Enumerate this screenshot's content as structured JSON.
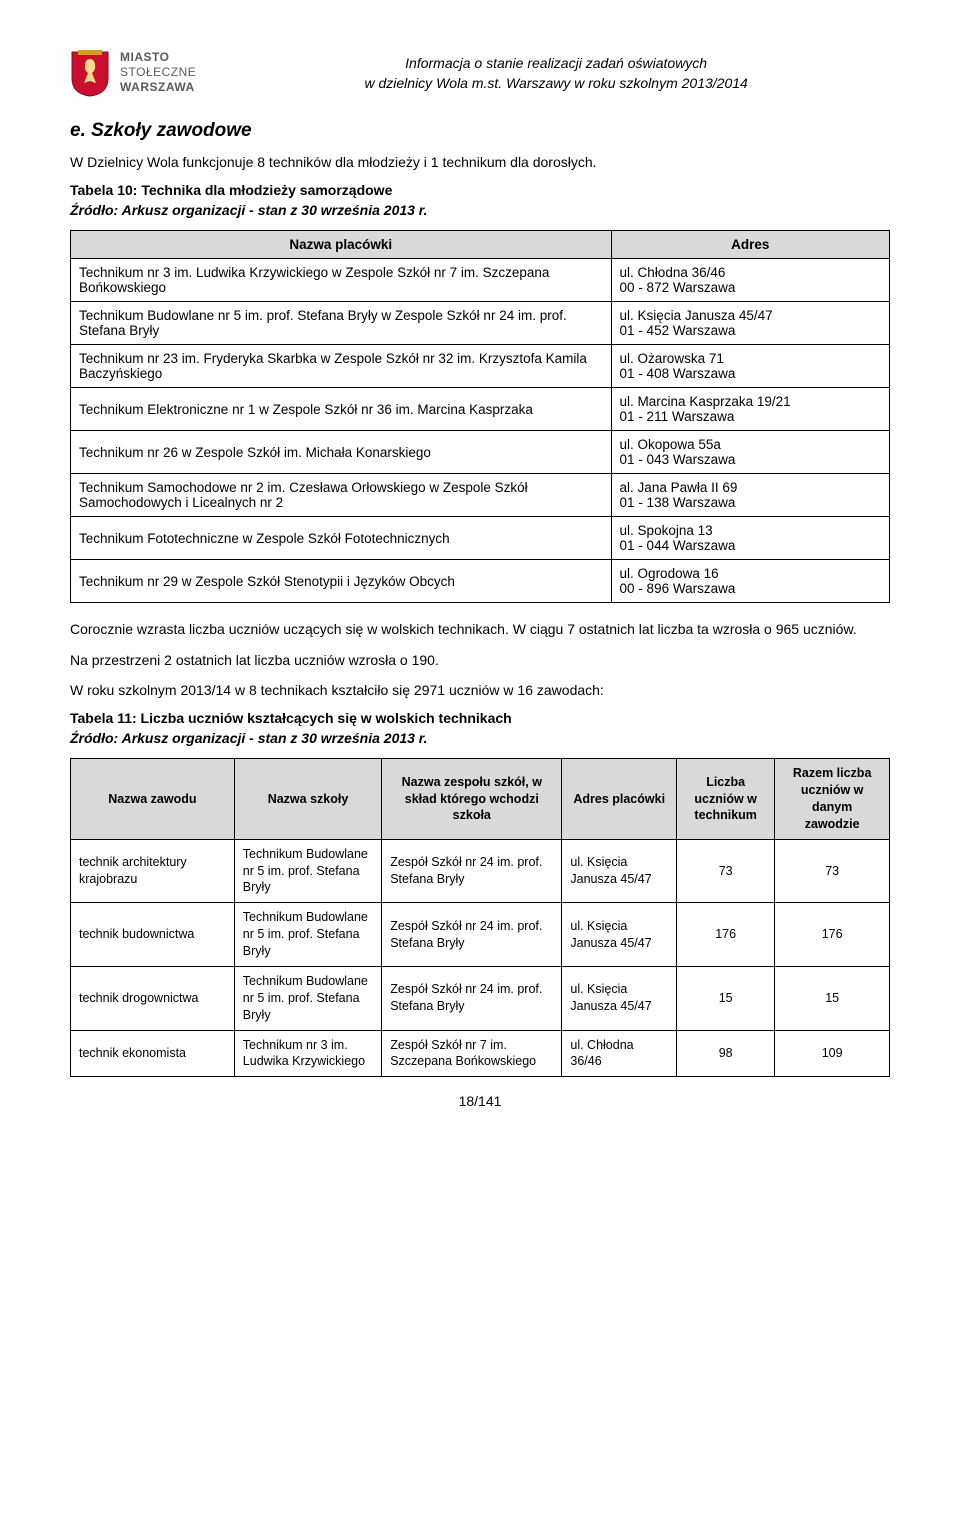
{
  "header": {
    "logo_l1": "MIASTO",
    "logo_l2": "STOŁECZNE",
    "logo_l3": "WARSZAWA",
    "title_l1": "Informacja o stanie realizacji zadań oświatowych",
    "title_l2": "w dzielnicy Wola m.st. Warszawy w roku szkolnym 2013/2014"
  },
  "section_heading": "e. Szkoły zawodowe",
  "intro": "W Dzielnicy Wola funkcjonuje 8 techników dla młodzieży i 1 technikum dla dorosłych.",
  "table1_caption": "Tabela 10: Technika dla młodzieży samorządowe",
  "source": "Źródło: Arkusz organizacji - stan z 30 września 2013 r.",
  "t1": {
    "h1": "Nazwa placówki",
    "h2": "Adres",
    "rows": [
      {
        "name": "Technikum nr 3 im. Ludwika Krzywickiego w Zespole Szkół nr 7 im. Szczepana Bońkowskiego",
        "addr": "ul. Chłodna 36/46\n00 - 872 Warszawa"
      },
      {
        "name": "Technikum Budowlane nr 5 im. prof. Stefana Bryły w Zespole Szkół nr 24 im. prof. Stefana Bryły",
        "addr": "ul. Księcia Janusza 45/47\n01 - 452 Warszawa"
      },
      {
        "name": "Technikum nr 23 im. Fryderyka Skarbka w Zespole Szkół nr 32 im. Krzysztofa Kamila Baczyńskiego",
        "addr": "ul. Ożarowska 71\n01 - 408 Warszawa"
      },
      {
        "name": "Technikum Elektroniczne nr 1 w Zespole Szkół nr 36 im. Marcina Kasprzaka",
        "addr": "ul. Marcina Kasprzaka 19/21\n01 - 211 Warszawa"
      },
      {
        "name": "Technikum nr 26 w Zespole Szkół im. Michała Konarskiego",
        "addr": "ul. Okopowa 55a\n01 - 043 Warszawa"
      },
      {
        "name": "Technikum Samochodowe nr 2 im. Czesława Orłowskiego w Zespole Szkół Samochodowych i Licealnych nr 2",
        "addr": "al. Jana Pawła II 69\n01 - 138 Warszawa"
      },
      {
        "name": "Technikum Fototechniczne w Zespole Szkół Fototechnicznych",
        "addr": "ul. Spokojna 13\n01 - 044 Warszawa"
      },
      {
        "name": "Technikum nr 29 w Zespole Szkół Stenotypii i Języków Obcych",
        "addr": "ul. Ogrodowa 16\n00 - 896 Warszawa"
      }
    ]
  },
  "mid": {
    "p1": "Corocznie wzrasta liczba uczniów uczących się w wolskich technikach. W ciągu 7 ostatnich lat liczba ta wzrosła o 965 uczniów.",
    "p2": "Na przestrzeni 2 ostatnich lat liczba uczniów wzrosła o 190.",
    "p3": "W roku szkolnym 2013/14 w 8 technikach kształciło się 2971 uczniów w 16 zawodach:"
  },
  "table2_caption": "Tabela 11: Liczba uczniów kształcących się w wolskich technikach",
  "t2": {
    "h1": "Nazwa zawodu",
    "h2": "Nazwa szkoły",
    "h3": "Nazwa zespołu szkół, w skład którego wchodzi szkoła",
    "h4": "Adres placówki",
    "h5": "Liczba uczniów w technikum",
    "h6": "Razem liczba uczniów w danym zawodzie",
    "rows": [
      {
        "c1": "technik architektury krajobrazu",
        "c2": "Technikum Budowlane nr 5 im. prof. Stefana Bryły",
        "c3": "Zespół Szkół nr 24 im. prof. Stefana Bryły",
        "c4": "ul. Księcia Janusza 45/47",
        "c5": "73",
        "c6": "73"
      },
      {
        "c1": "technik budownictwa",
        "c2": "Technikum Budowlane nr 5 im. prof. Stefana Bryły",
        "c3": "Zespół Szkół nr 24 im. prof. Stefana Bryły",
        "c4": "ul. Księcia Janusza 45/47",
        "c5": "176",
        "c6": "176"
      },
      {
        "c1": "technik drogownictwa",
        "c2": "Technikum Budowlane nr 5 im. prof. Stefana Bryły",
        "c3": "Zespół Szkół nr 24 im. prof. Stefana Bryły",
        "c4": "ul. Księcia Janusza 45/47",
        "c5": "15",
        "c6": "15"
      },
      {
        "c1": "technik ekonomista",
        "c2": "Technikum nr 3 im. Ludwika Krzywickiego",
        "c3": "Zespół Szkół nr 7 im. Szczepana Bońkowskiego",
        "c4": "ul. Chłodna 36/46",
        "c5": "98",
        "c6": "109"
      }
    ]
  },
  "footer": "18/141",
  "colors": {
    "table_header_bg": "#d9d9d9",
    "table_border": "#000000",
    "text": "#000000",
    "logo_text": "#5a5a5a",
    "crest_red": "#c8102e",
    "crest_gold": "#d4a017"
  }
}
